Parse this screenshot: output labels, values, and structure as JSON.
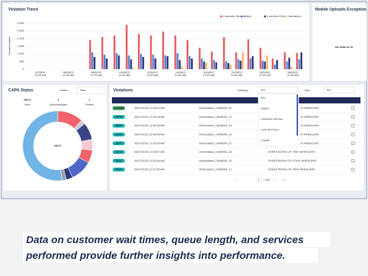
{
  "violation_trend": {
    "title": "Violation Trend",
    "y_label": "Counts number",
    "ylim": [
      0,
      3000
    ],
    "yticks": [
      0,
      500,
      {
        "value": 1000,
        "label": "1,000"
      },
      {
        "value": 1500,
        "label": "1,500"
      },
      {
        "value": 2000,
        "label": "2,000"
      },
      {
        "value": 2500,
        "label": "2,500"
      },
      {
        "value": 3000,
        "label": "3,000"
      }
    ],
    "x_labels": [
      {
        "date": "22/08/22",
        "time": "12:00 AM"
      },
      {
        "date": "06/09/22",
        "time": "12:00 AM"
      },
      {
        "date": "08/09/22",
        "time": "12:00 AM"
      },
      {
        "date": "10/09/22",
        "time": "12:00 AM"
      },
      {
        "date": "12/09/22",
        "time": "12:00 AM"
      },
      {
        "date": "14/09/22",
        "time": "12:00 AM"
      },
      {
        "date": "19/09/22",
        "time": "12:00 AM"
      },
      {
        "date": "21/09/22",
        "time": "12:00 AM"
      },
      {
        "date": "24/09/22",
        "time": "12:00 AM"
      },
      {
        "date": "26/09/22",
        "time": "12:00 AM"
      }
    ],
    "series": [
      {
        "name": "Customer Service",
        "color": "#e25b5f",
        "values": [
          1900,
          2100,
          2200,
          2900,
          2300,
          2200,
          2450,
          2200,
          1900,
          1400,
          1150,
          2100,
          1100,
          1950,
          1400,
          700,
          1100,
          1050
        ]
      },
      {
        "name": "Safety",
        "color": "#5a7fd6",
        "values": [
          1100,
          950,
          1050,
          900,
          1000,
          950,
          900,
          1050,
          850,
          700,
          600,
          500,
          650,
          700,
          550,
          300,
          500,
          650
        ]
      },
      {
        "name": "Look And Feel",
        "color": "#2c3877",
        "values": [
          800,
          700,
          900,
          650,
          800,
          700,
          850,
          600,
          700,
          500,
          450,
          400,
          550,
          850,
          500,
          600,
          750,
          1100
        ]
      },
      {
        "name": "Operations",
        "color": "#f2b46a",
        "values": [
          0,
          0,
          0,
          100,
          0,
          0,
          0,
          200,
          0,
          400,
          0,
          300,
          1100,
          0,
          900,
          0,
          150,
          0
        ]
      }
    ]
  },
  "mobile_uploads": {
    "title": "Mobile Uploads Exception",
    "message": "No Data for M"
  },
  "capa": {
    "title": "CAPA Status",
    "status_label": "Status :",
    "status_value": "New",
    "stats": [
      {
        "value": 28147,
        "label": "New"
      },
      {
        "value": 0,
        "label": "Acknowledged"
      },
      {
        "value": 1,
        "label": "Closed"
      }
    ],
    "donut": {
      "center": "28147",
      "values": [
        12,
        2,
        8,
        5,
        6,
        10,
        3,
        2,
        52
      ],
      "colors": [
        "#f0636a",
        "#c9c9d9",
        "#3b4585",
        "#f6c9cf",
        "#f0636a",
        "#4f67c9",
        "#2c3877",
        "#9aa0aa",
        "#71b4e6"
      ]
    }
  },
  "violations": {
    "title": "Violations",
    "category_label": "Category :",
    "category_value": "ALL",
    "category_options": [
      "ALL",
      "Safety",
      "Customer Service",
      "Look And Feel",
      "Loyalty"
    ],
    "type_label": "Type :",
    "type_value": "ALL",
    "columns": [
      "Timestamp",
      "Location"
    ],
    "rows": [
      {
        "status": "CLOSED",
        "timestamp": "06/27/2022 12:33:42 AM",
        "location": "Ahmedabad_CAMERA_01",
        "violation": "R WHEELERS"
      },
      {
        "status": "NEW",
        "timestamp": "06/27/2022 12:03:06 AM",
        "location": "Ahmedabad_CAMERA_74",
        "violation": "R WHEELERS"
      },
      {
        "status": "NEW",
        "timestamp": "06/27/2022 12:03:06 AM",
        "location": "Ahmedabad_CAMERA_03",
        "violation": "R WHEELERS"
      },
      {
        "status": "NEW",
        "timestamp": "06/27/2022 12:03:06 AM",
        "location": "Ahmedabad_CAMERA_15",
        "violation": "R WHEELERS"
      },
      {
        "status": "NEW",
        "timestamp": "06/27/2022 12:03:06 AM",
        "location": "Ahmedabad_CAMERA_01",
        "violation": "R WHEELERS"
      },
      {
        "status": "NEW",
        "timestamp": "06/27/2022 12:03:07 AM",
        "location": "Ahmedabad_CAMERA_45",
        "violation": "OVERSTAYING OF TWO WHEELERS"
      },
      {
        "status": "NEW",
        "timestamp": "06/27/2022 12:02:06 AM",
        "location": "Ahmedabad_CAMERA_15",
        "violation": "OVERSTAYING OF FOUR WHEELERS"
      },
      {
        "status": "NEW",
        "timestamp": "06/27/2022 12:10:35 AM",
        "location": "Ahmedabad_CAMERA_11",
        "violation": "OVERSTAYING OF TWO WHEELERS"
      }
    ],
    "pagination": {
      "prev": "‹",
      "page": "1",
      "total": "/ 209",
      "next": "›",
      "last": "»"
    }
  },
  "caption": {
    "lines": [
      "Data on customer wait times, queue length, and services",
      "performed provide further insights into performance."
    ]
  }
}
